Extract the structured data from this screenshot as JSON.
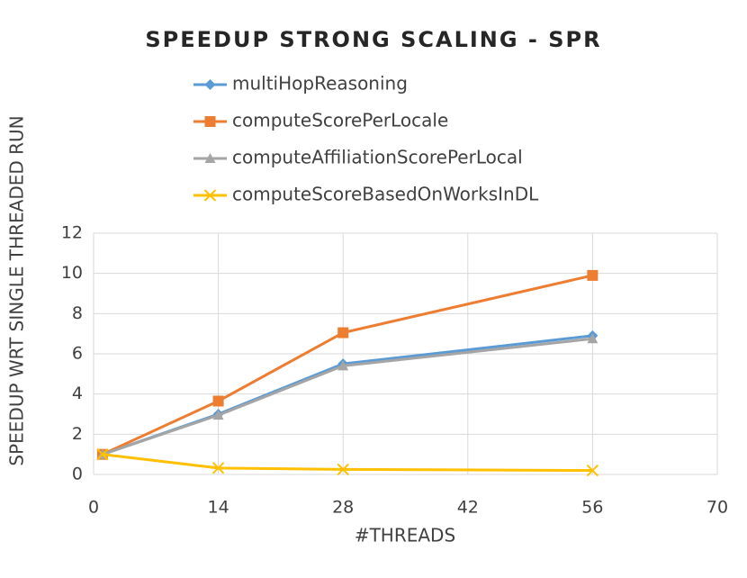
{
  "chart_data": {
    "type": "line",
    "title": "SPEEDUP STRONG SCALING - SPR",
    "x_label": "#THREADS",
    "y_label": "SPEEDUP WRT SINGLE THREADED RUN",
    "x": [
      1,
      14,
      28,
      56
    ],
    "series": [
      {
        "name": "multiHopReasoning",
        "color": "#5b9bd5",
        "marker": "diamond",
        "values": [
          1,
          3.0,
          5.5,
          6.9
        ]
      },
      {
        "name": "computeScorePerLocale",
        "color": "#ed7d31",
        "marker": "square",
        "values": [
          1,
          3.65,
          7.05,
          9.9
        ]
      },
      {
        "name": "computeAffiliationScorePerLocal",
        "color": "#a5a5a5",
        "marker": "triangle",
        "values": [
          1,
          2.95,
          5.4,
          6.75
        ]
      },
      {
        "name": "computeScoreBasedOnWorksInDL",
        "color": "#ffc000",
        "marker": "x",
        "values": [
          1,
          0.32,
          0.25,
          0.2
        ]
      }
    ],
    "xlim": [
      0,
      70
    ],
    "xticks": [
      0,
      14,
      28,
      42,
      56,
      70
    ],
    "ylim": [
      0,
      12
    ],
    "yticks": [
      0,
      2,
      4,
      6,
      8,
      10,
      12
    ],
    "grid": true
  }
}
